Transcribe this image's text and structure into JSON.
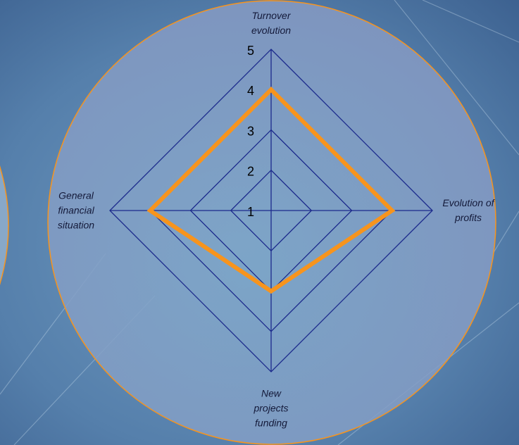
{
  "chart_data": {
    "type": "radar",
    "categories": [
      "Turnover evolution",
      "Evolution of profits",
      "New projects funding",
      "General financial situation"
    ],
    "series": [
      {
        "color": "#f7941d",
        "values": [
          4,
          4,
          3,
          4
        ]
      }
    ],
    "rlim": [
      1,
      5
    ],
    "rticks": [
      1,
      2,
      3,
      4,
      5
    ],
    "grid_color": "#1c2a8c"
  }
}
